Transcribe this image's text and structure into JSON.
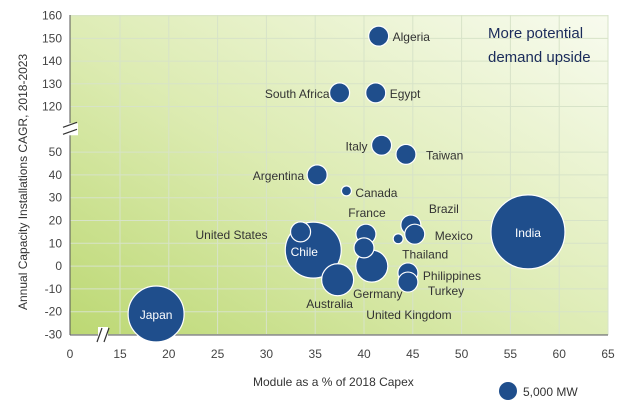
{
  "chart_data": {
    "type": "scatter",
    "subtype": "bubble",
    "xlabel": "Module as a % of 2018 Capex",
    "ylabel": "Annual Capacity Installations CAGR, 2018-2023",
    "xticks": [
      "0",
      "15",
      "20",
      "25",
      "30",
      "35",
      "40",
      "45",
      "50",
      "55",
      "60",
      "65"
    ],
    "yticks_lower": [
      "-30",
      "-20",
      "-10",
      "0",
      "10",
      "20",
      "30",
      "40",
      "50"
    ],
    "yticks_upper": [
      "120",
      "130",
      "140",
      "150",
      "160"
    ],
    "axis_break": {
      "x": [
        0,
        15
      ],
      "y": [
        55,
        115
      ]
    },
    "annotation": {
      "line1": "More   potential",
      "line2": "demand upside"
    },
    "legend_label": "5,000 MW",
    "points": [
      {
        "name": "Algeria",
        "x": 41.5,
        "y": 151,
        "size": "small"
      },
      {
        "name": "South Africa",
        "x": 37.5,
        "y": 126,
        "size": "small"
      },
      {
        "name": "Egypt",
        "x": 41.2,
        "y": 126,
        "size": "small"
      },
      {
        "name": "Italy",
        "x": 41.8,
        "y": 53,
        "size": "small"
      },
      {
        "name": "Taiwan",
        "x": 44.3,
        "y": 49,
        "size": "small"
      },
      {
        "name": "Argentina",
        "x": 35.2,
        "y": 40,
        "size": "small"
      },
      {
        "name": "Canada",
        "x": 38.2,
        "y": 33,
        "size": "tiny"
      },
      {
        "name": "Brazil",
        "x": 44.8,
        "y": 18,
        "size": "small"
      },
      {
        "name": "France",
        "x": 40.2,
        "y": 14,
        "size": "small"
      },
      {
        "name": "Mexico",
        "x": 45.2,
        "y": 14,
        "size": "small"
      },
      {
        "name": "India",
        "x": 56.8,
        "y": 15,
        "size": "very_large"
      },
      {
        "name": "United States",
        "x": 33.5,
        "y": 15,
        "size": "small"
      },
      {
        "name": "Chile",
        "x": 34.8,
        "y": 7,
        "size": "large"
      },
      {
        "name": "Thailand",
        "x": 43.5,
        "y": 12,
        "size": "tiny"
      },
      {
        "name": "Germany",
        "x": 40.8,
        "y": 0,
        "size": "medium"
      },
      {
        "name": "Philippines",
        "x": 44.5,
        "y": -3,
        "size": "small"
      },
      {
        "name": "Australia",
        "x": 37.3,
        "y": -6,
        "size": "medium"
      },
      {
        "name": "Turkey",
        "x": 44.5,
        "y": -7,
        "size": "small"
      },
      {
        "name": "United Kingdom",
        "x": 40.0,
        "y": 8,
        "size": "small"
      },
      {
        "name": "Japan",
        "x": 18.7,
        "y": -21,
        "size": "large"
      }
    ]
  },
  "colors": {
    "bubble": "#1f4e8c",
    "bubble_stroke": "#ffffff",
    "grid": "#d7e3c8",
    "bg_left": "#c3dc7b",
    "bg_right": "#f6faec",
    "axis": "#555555"
  }
}
